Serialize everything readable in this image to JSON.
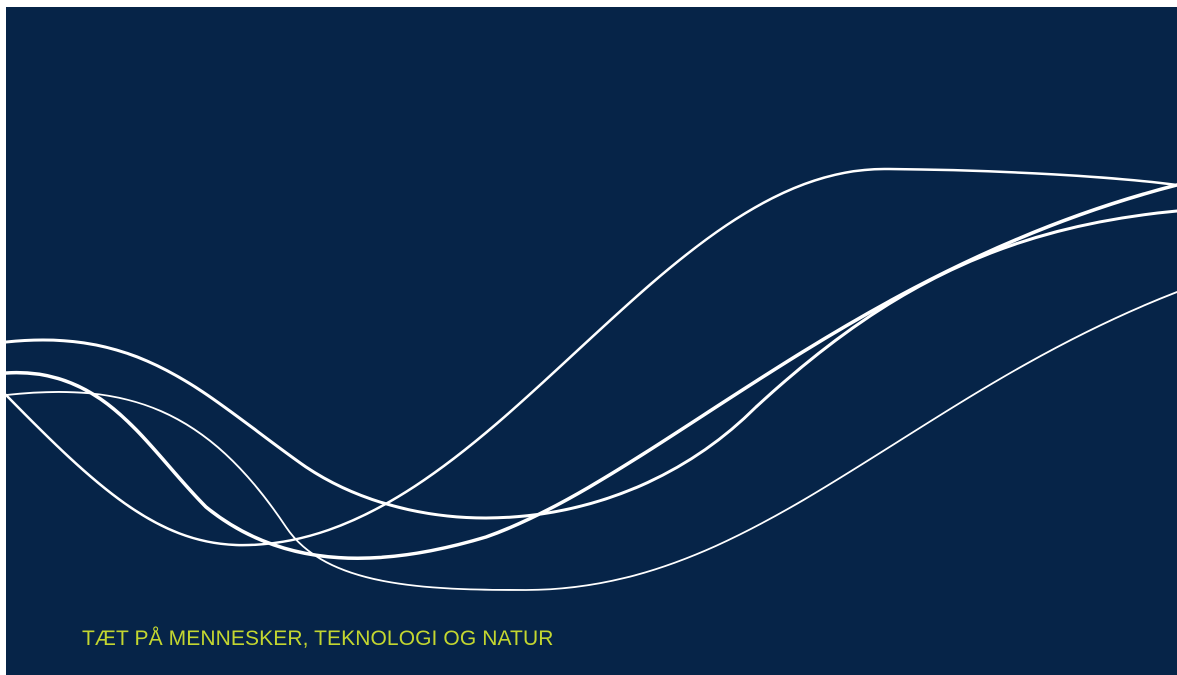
{
  "slide": {
    "tagline": "TÆT PÅ MENNESKER, TEKNOLOGI OG NATUR"
  },
  "colors": {
    "background": "#062448",
    "lines": "#ffffff",
    "tagline": "#c3d630",
    "frame": "#ffffff"
  }
}
